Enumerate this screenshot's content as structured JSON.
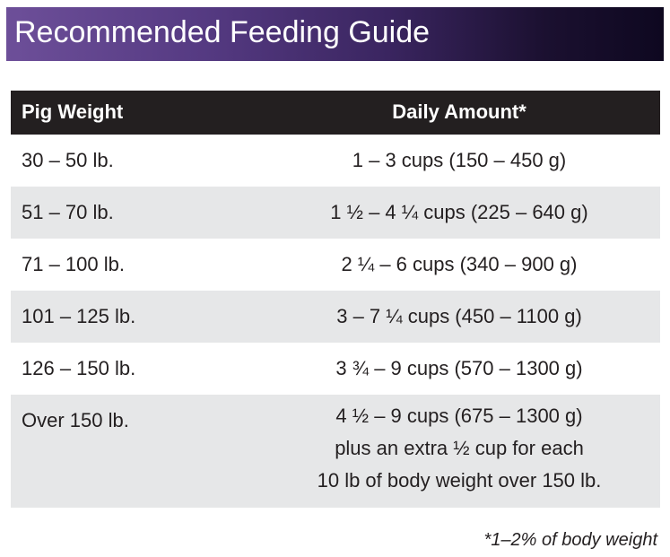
{
  "banner": {
    "title": "Recommended Feeding Guide"
  },
  "table": {
    "headers": [
      "Pig Weight",
      "Daily Amount*"
    ],
    "rows": [
      {
        "weight": "30 – 50 lb.",
        "amount": [
          "1 – 3 cups (150 – 450 g)"
        ]
      },
      {
        "weight": "51 – 70 lb.",
        "amount": [
          "1 ½ – 4 ¼ cups (225 – 640 g)"
        ]
      },
      {
        "weight": "71 – 100 lb.",
        "amount": [
          "2 ¼ – 6 cups (340 – 900 g)"
        ]
      },
      {
        "weight": "101 – 125 lb.",
        "amount": [
          "3 – 7 ¼ cups (450 – 1100 g)"
        ]
      },
      {
        "weight": "126 – 150 lb.",
        "amount": [
          "3 ¾ – 9 cups (570 – 1300 g)"
        ]
      },
      {
        "weight": "Over 150 lb.",
        "amount": [
          "4 ½ – 9 cups (675 – 1300 g)",
          "plus an extra ½ cup for each",
          "10 lb of body weight over 150 lb."
        ]
      }
    ]
  },
  "footnote": "*1–2% of body weight",
  "colors": {
    "header_bg": "#231f20",
    "alt_row_bg": "#e6e7e8",
    "banner_start": "#6d4f99",
    "banner_end": "#0e0820"
  }
}
